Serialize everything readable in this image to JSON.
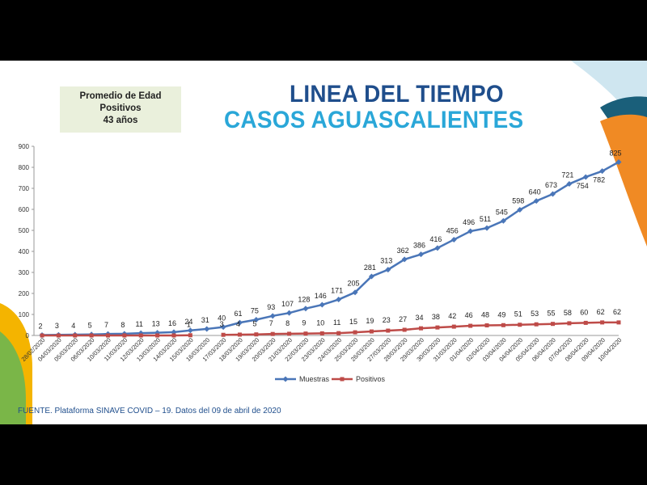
{
  "info_box": {
    "line1": "Promedio de Edad",
    "line2": "Positivos",
    "line3": "43 años"
  },
  "title": {
    "line1": "LINEA DEL TIEMPO",
    "line2": "CASOS AGUASCALIENTES"
  },
  "source": "FUENTE. Plataforma SINAVE COVID – 19. Datos del 09 de abril de 2020",
  "colors": {
    "muestras": "#4a76b8",
    "positivos": "#be4b48",
    "title_dark": "#1f4e8c",
    "title_light": "#2aa7d8"
  },
  "chart_data": {
    "type": "line",
    "ylim": [
      0,
      900
    ],
    "yticks": [
      0,
      100,
      200,
      300,
      400,
      500,
      600,
      700,
      800,
      900
    ],
    "legend_position": "bottom",
    "categories": [
      "28/02/2020",
      "04/03/2020",
      "05/03/2020",
      "06/03/2020",
      "10/03/2020",
      "11/03/2020",
      "12/03/2020",
      "13/03/2020",
      "14/03/2020",
      "15/03/2020",
      "16/03/2020",
      "17/03/2020",
      "18/03/2020",
      "19/03/2020",
      "20/03/2020",
      "21/03/2020",
      "22/03/2020",
      "23/03/2020",
      "24/03/2020",
      "25/03/2020",
      "26/03/2020",
      "27/03/2020",
      "28/03/2020",
      "29/03/2020",
      "30/03/2020",
      "31/03/2020",
      "01/04/2020",
      "02/04/2020",
      "03/04/2020",
      "04/04/2020",
      "05/04/2020",
      "06/04/2020",
      "07/04/2020",
      "08/04/2020",
      "09/04/2020",
      "10/04/2020"
    ],
    "series": [
      {
        "name": "Muestras",
        "values": [
          2,
          3,
          4,
          5,
          7,
          8,
          11,
          13,
          16,
          24,
          31,
          40,
          61,
          75,
          93,
          107,
          128,
          146,
          171,
          205,
          281,
          313,
          362,
          386,
          416,
          456,
          496,
          511,
          545,
          598,
          640,
          673,
          721,
          754,
          782,
          825
        ]
      },
      {
        "name": "Positivos",
        "values": [
          0,
          0,
          0,
          0,
          0,
          0,
          0,
          0,
          0,
          1,
          null,
          3,
          4,
          5,
          7,
          8,
          9,
          10,
          11,
          15,
          19,
          23,
          27,
          34,
          38,
          42,
          46,
          48,
          49,
          51,
          53,
          55,
          58,
          60,
          62,
          62
        ]
      }
    ],
    "muestras_labels": [
      "2",
      "3",
      "4",
      "5",
      "7",
      "8",
      "11",
      "13",
      "16",
      "24",
      "31",
      "40",
      "61",
      "75",
      "93",
      "107",
      "128",
      "146",
      "171",
      "205",
      "281",
      "313",
      "362",
      "386",
      "416",
      "456",
      "496",
      "511",
      "545",
      "598",
      "640",
      "673",
      "721",
      "754",
      "782",
      "825"
    ],
    "positivos_labels": [
      "",
      "",
      "",
      "",
      "",
      "",
      "",
      "",
      "",
      "1",
      "",
      "3",
      "4",
      "5",
      "7",
      "8",
      "9",
      "10",
      "11",
      "15",
      "19",
      "23",
      "27",
      "34",
      "38",
      "42",
      "46",
      "48",
      "49",
      "51",
      "53",
      "55",
      "58",
      "60",
      "62",
      "62"
    ]
  }
}
